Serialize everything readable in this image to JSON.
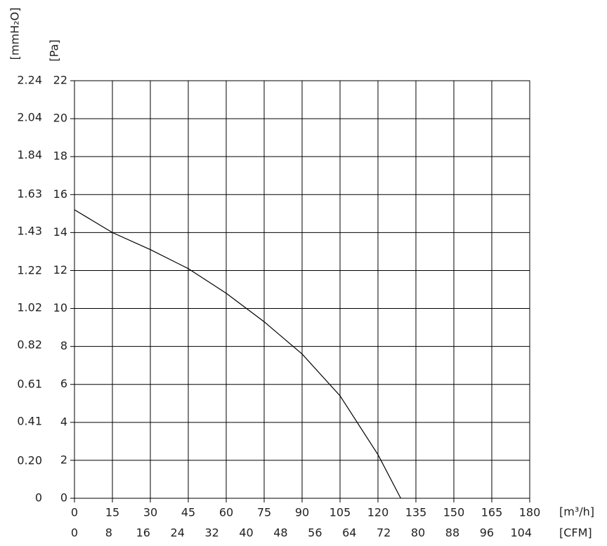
{
  "chart_data": {
    "type": "line",
    "x": [
      0,
      15,
      30,
      45,
      60,
      75,
      90,
      105,
      120,
      129
    ],
    "values": [
      15.2,
      14.0,
      13.1,
      12.1,
      10.8,
      9.3,
      7.6,
      5.4,
      2.3,
      0
    ],
    "color": "#000000",
    "xlim": [
      0,
      180
    ],
    "xticks": [
      0,
      15,
      30,
      45,
      60,
      75,
      90,
      105,
      120,
      135,
      150,
      165,
      180
    ],
    "x2lim": [
      0,
      106
    ],
    "x2ticks": [
      0,
      8,
      16,
      24,
      32,
      40,
      48,
      56,
      64,
      72,
      80,
      88,
      96,
      104
    ],
    "ylim": [
      0,
      22
    ],
    "yticks": [
      0,
      2,
      4,
      6,
      8,
      10,
      12,
      14,
      16,
      18,
      20,
      22
    ],
    "y2lim": [
      0,
      2.24
    ],
    "y2ticks": [
      0,
      {
        "value": 0.2,
        "label": "0.20"
      },
      0.41,
      0.61,
      0.82,
      1.02,
      1.22,
      1.43,
      1.63,
      1.84,
      2.04,
      2.24
    ],
    "xlabel": "[m³/h]",
    "x2label": "[CFM]",
    "ylabel": "[Pa]",
    "y2label": "[mmH₂O]",
    "grid": true
  }
}
